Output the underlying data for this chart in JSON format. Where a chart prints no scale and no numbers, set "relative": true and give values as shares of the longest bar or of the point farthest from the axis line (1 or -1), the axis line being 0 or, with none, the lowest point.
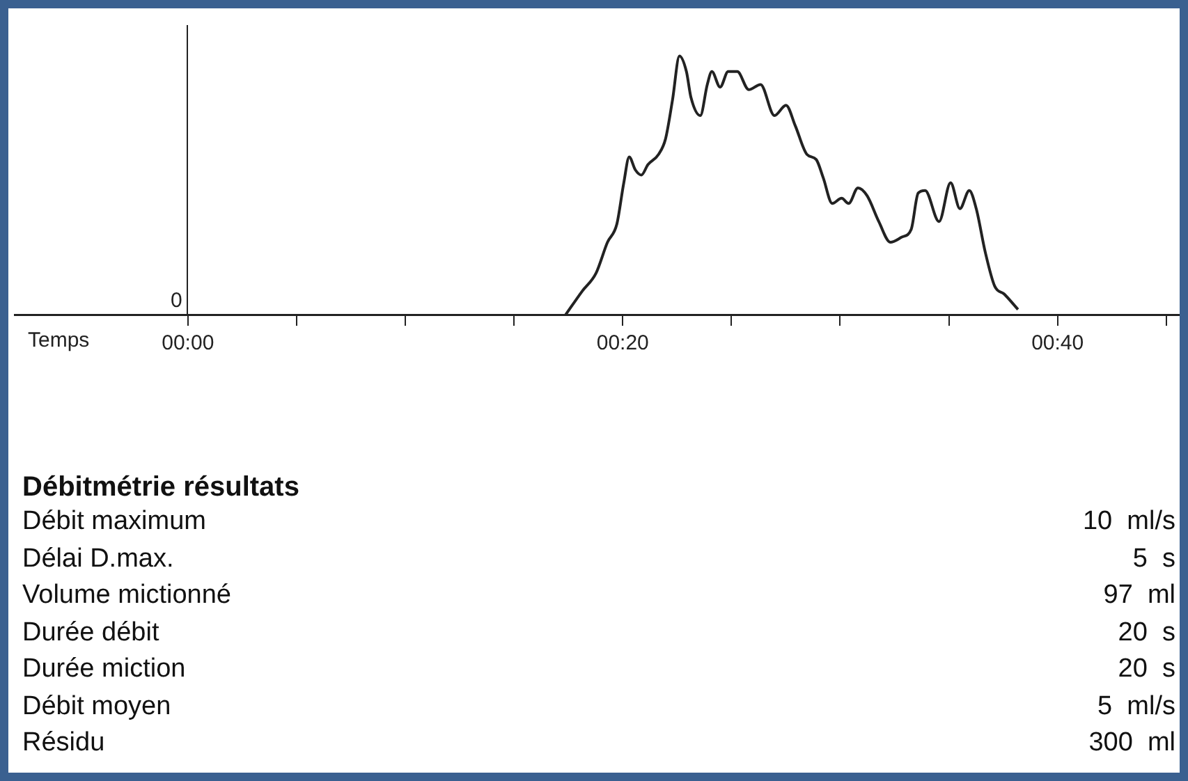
{
  "chart_data": {
    "type": "line",
    "relative": true,
    "title": "Débitmétrie résultats",
    "xlabel": "Temps",
    "color": "#222222",
    "marker": "none",
    "grid": false,
    "legend": false,
    "x": [
      17.38,
      18.13,
      18.77,
      19.3,
      19.73,
      20.05,
      20.3,
      20.58,
      20.86,
      21.16,
      21.65,
      21.97,
      22.29,
      22.61,
      22.93,
      23.14,
      23.57,
      23.89,
      24.1,
      24.48,
      24.85,
      25.27,
      25.8,
      26.34,
      26.98,
      27.51,
      27.94,
      28.47,
      28.9,
      29.22,
      29.64,
      30.07,
      30.39,
      30.82,
      31.24,
      31.78,
      32.31,
      32.84,
      33.27,
      33.59,
      33.91,
      34.55,
      35.08,
      35.51,
      35.94,
      36.26,
      36.68,
      37.11,
      37.54,
      38.18
    ],
    "values": [
      0,
      0.09,
      0.16,
      0.28,
      0.35,
      0.51,
      0.61,
      0.56,
      0.54,
      0.58,
      0.62,
      0.68,
      0.83,
      1,
      0.94,
      0.84,
      0.77,
      0.89,
      0.94,
      0.88,
      0.94,
      0.94,
      0.87,
      0.89,
      0.77,
      0.81,
      0.73,
      0.62,
      0.6,
      0.53,
      0.43,
      0.45,
      0.43,
      0.49,
      0.46,
      0.36,
      0.28,
      0.3,
      0.33,
      0.47,
      0.48,
      0.36,
      0.51,
      0.41,
      0.48,
      0.41,
      0.24,
      0.11,
      0.08,
      0.02
    ],
    "xlim": [
      -8,
      46
    ],
    "xticks": [
      {
        "value": 0,
        "label": "00:00"
      },
      {
        "value": 5,
        "label": null
      },
      {
        "value": 10,
        "label": null
      },
      {
        "value": 15,
        "label": null
      },
      {
        "value": 20,
        "label": "00:20"
      },
      {
        "value": 25,
        "label": null
      },
      {
        "value": 30,
        "label": null
      },
      {
        "value": 35,
        "label": null
      },
      {
        "value": 40,
        "label": "00:40"
      },
      {
        "value": 45,
        "label": null
      }
    ],
    "annotations": [
      "0",
      "Débit maximum",
      "10  ml/s",
      "Délai D.max.",
      "5  s",
      "Volume mictionné",
      "97  ml",
      "Durée débit",
      "20  s",
      "Durée miction",
      "20  s",
      "Débit moyen",
      "5  ml/s",
      "Résidu",
      "300  ml"
    ]
  }
}
